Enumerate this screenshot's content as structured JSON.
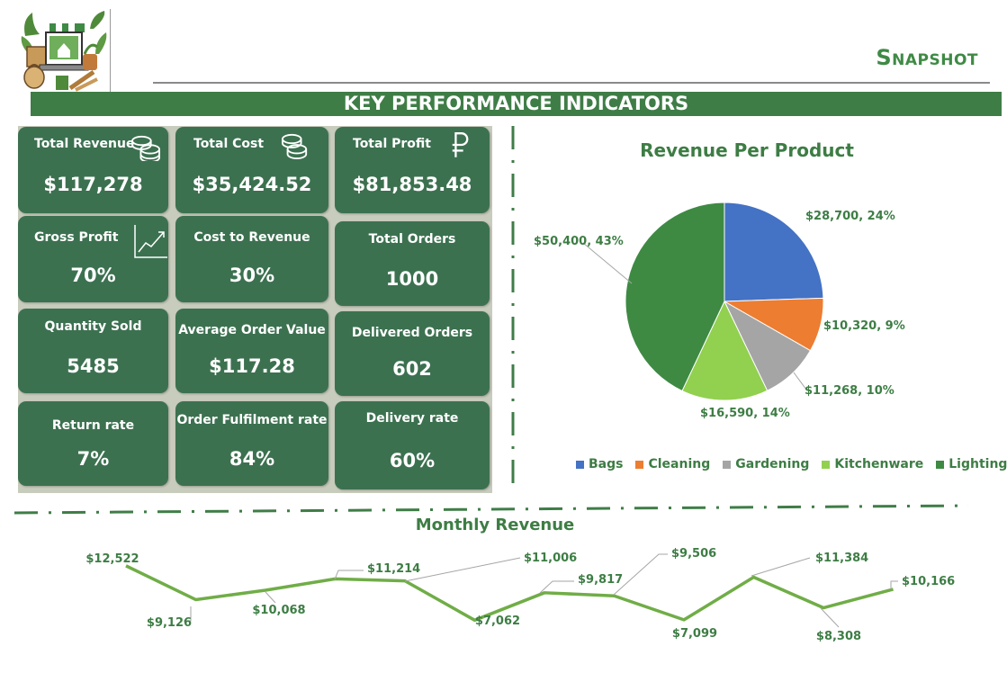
{
  "header": {
    "page_title": "Snapshot",
    "banner": "KEY PERFORMANCE INDICATORS"
  },
  "colors": {
    "accent": "#3f7d47",
    "tile": "#3c7150",
    "panel": "#c8ccbd",
    "line": "#70ad47"
  },
  "kpis": [
    {
      "label": "Total Revenue",
      "value": "$117,278",
      "icon": "coins-icon"
    },
    {
      "label": "Total Cost",
      "value": "$35,424.52",
      "icon": "coins-icon"
    },
    {
      "label": "Total Profit",
      "value": "$81,853.48",
      "icon": "ruble-icon"
    },
    {
      "label": "Gross Profit",
      "value": "70%",
      "icon": "trend-chart-icon"
    },
    {
      "label": "Cost to Revenue",
      "value": "30%"
    },
    {
      "label": "Total Orders",
      "value": "1000"
    },
    {
      "label": "Quantity Sold",
      "value": "5485"
    },
    {
      "label": "Average Order Value",
      "value": "$117.28"
    },
    {
      "label": "Delivered Orders",
      "value": "602"
    },
    {
      "label": "Return rate",
      "value": "7%"
    },
    {
      "label": "Order Fulfilment rate",
      "value": "84%"
    },
    {
      "label": "Delivery rate",
      "value": "60%"
    }
  ],
  "chart_data": [
    {
      "type": "pie",
      "title": "Revenue Per Product",
      "categories": [
        "Bags",
        "Cleaning",
        "Gardening",
        "Kitchenware",
        "Lighting"
      ],
      "values": [
        28700,
        10320,
        11268,
        16590,
        50400
      ],
      "percents": [
        24,
        9,
        10,
        14,
        43
      ],
      "labels": [
        "$28,700, 24%",
        "$10,320, 9%",
        "$11,268, 10%",
        "$16,590, 14%",
        "$50,400, 43%"
      ],
      "colors": [
        "#4472c4",
        "#ed7d31",
        "#a5a5a5",
        "#92d050",
        "#3e8a43"
      ],
      "legend": "bottom"
    },
    {
      "type": "line",
      "title": "Monthly Revenue",
      "values": [
        12522,
        9126,
        10068,
        11214,
        11006,
        7062,
        9817,
        9506,
        7099,
        11384,
        8308,
        10166
      ],
      "labels": [
        "$12,522",
        "$9,126",
        "$10,068",
        "$11,214",
        "$11,006",
        "$7,062",
        "$9,817",
        "$9,506",
        "$7,099",
        "$11,384",
        "$8,308",
        "$10,166"
      ],
      "color": "#70ad47",
      "grid": false,
      "axes_visible": false
    }
  ]
}
